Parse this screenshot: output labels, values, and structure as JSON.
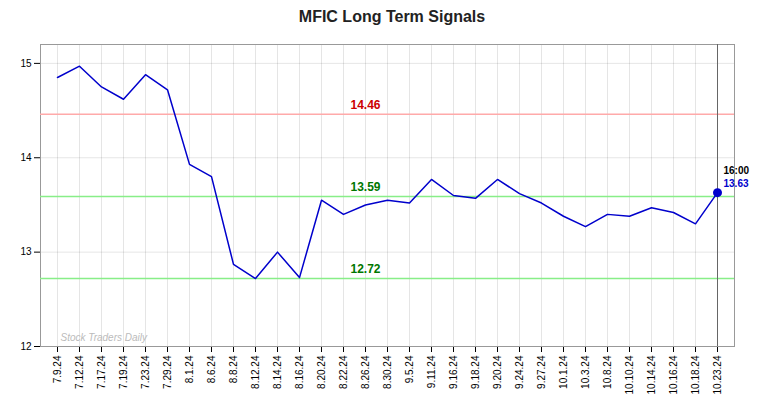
{
  "chart_data": {
    "type": "line",
    "title": "MFIC Long Term Signals",
    "categories": [
      "7.9.24",
      "7.12.24",
      "7.17.24",
      "7.19.24",
      "7.23.24",
      "7.29.24",
      "8.1.24",
      "8.6.24",
      "8.8.24",
      "8.12.24",
      "8.14.24",
      "8.16.24",
      "8.20.24",
      "8.22.24",
      "8.26.24",
      "8.30.24",
      "9.5.24",
      "9.11.24",
      "9.16.24",
      "9.18.24",
      "9.20.24",
      "9.24.24",
      "9.27.24",
      "10.1.24",
      "10.3.24",
      "10.8.24",
      "10.10.24",
      "10.14.24",
      "10.16.24",
      "10.18.24",
      "10.23.24"
    ],
    "values": [
      14.85,
      14.97,
      14.75,
      14.62,
      14.88,
      14.72,
      13.93,
      13.8,
      12.87,
      12.72,
      13.0,
      12.73,
      13.55,
      13.4,
      13.5,
      13.55,
      13.52,
      13.77,
      13.6,
      13.57,
      13.77,
      13.62,
      13.52,
      13.38,
      13.27,
      13.4,
      13.38,
      13.47,
      13.42,
      13.3,
      13.63
    ],
    "color": "#0000cc",
    "ylim": [
      12.0,
      15.2
    ],
    "yticks": [
      12,
      13,
      14,
      15
    ],
    "grid": true,
    "reference_lines": [
      {
        "value": 14.46,
        "label": "14.46",
        "color": "#ffaaaa",
        "label_color": "#cc0000"
      },
      {
        "value": 13.59,
        "label": "13.59",
        "color": "#88ee88",
        "label_color": "#007700"
      },
      {
        "value": 12.72,
        "label": "12.72",
        "color": "#88ee88",
        "label_color": "#007700"
      }
    ],
    "last_point_line_color": "#666666",
    "annotations": [
      {
        "text": "16:00",
        "color": "#000000"
      },
      {
        "text": "13.63",
        "color": "#0000cc"
      }
    ],
    "watermark": {
      "text": "Stock Traders Daily",
      "color": "#bbbbbb"
    }
  }
}
